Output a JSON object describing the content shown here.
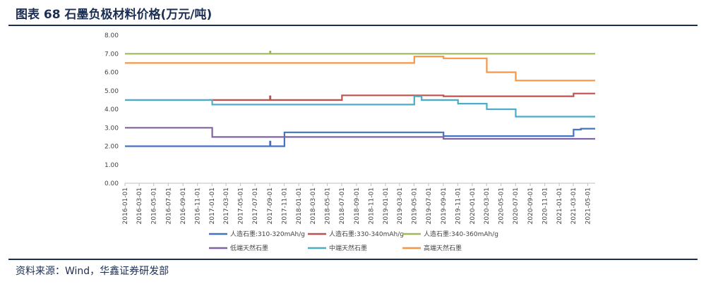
{
  "header": {
    "title": "图表 68 石墨负极材料价格(万元/吨)"
  },
  "footer": {
    "source": "资料来源：Wind，华鑫证券研发部"
  },
  "chart_data": {
    "type": "line",
    "step": true,
    "title": "图表 68 石墨负极材料价格(万元/吨)",
    "xlabel": "",
    "ylabel": "",
    "ylim": [
      0,
      8
    ],
    "yticks": [
      "0.00",
      "1.00",
      "2.00",
      "3.00",
      "4.00",
      "5.00",
      "6.00",
      "7.00",
      "8.00"
    ],
    "xlim": [
      "2016-01-01",
      "2021-06-01"
    ],
    "xticks": [
      "2016-01-01",
      "2016-03-01",
      "2016-05-01",
      "2016-07-01",
      "2016-09-01",
      "2016-11-01",
      "2017-01-01",
      "2017-03-01",
      "2017-05-01",
      "2017-07-01",
      "2017-09-01",
      "2017-11-01",
      "2018-01-01",
      "2018-03-01",
      "2018-05-01",
      "2018-07-01",
      "2018-09-01",
      "2018-11-01",
      "2019-01-01",
      "2019-03-01",
      "2019-05-01",
      "2019-07-01",
      "2019-09-01",
      "2019-11-01",
      "2020-01-01",
      "2020-03-01",
      "2020-05-01",
      "2020-07-01",
      "2020-09-01",
      "2020-11-01",
      "2021-01-01",
      "2021-03-01",
      "2021-05-01"
    ],
    "grid": false,
    "legend_position": "bottom",
    "series": [
      {
        "name": "人造石墨:310-320mAh/g",
        "color": "#4472c4",
        "points": [
          [
            "2016-01-01",
            2.0
          ],
          [
            "2017-09-01",
            2.0
          ],
          [
            "2017-09-02",
            2.25
          ],
          [
            "2017-09-04",
            2.0
          ],
          [
            "2017-11-01",
            2.0
          ],
          [
            "2017-11-02",
            2.75
          ],
          [
            "2019-09-01",
            2.75
          ],
          [
            "2019-09-02",
            2.55
          ],
          [
            "2021-03-01",
            2.55
          ],
          [
            "2021-03-02",
            2.9
          ],
          [
            "2021-04-01",
            2.9
          ],
          [
            "2021-04-02",
            2.95
          ],
          [
            "2021-06-01",
            2.95
          ]
        ]
      },
      {
        "name": "人造石墨:330-340mAh/g",
        "color": "#c0504d",
        "points": [
          [
            "2016-12-20",
            4.5
          ],
          [
            "2017-09-01",
            4.5
          ],
          [
            "2017-09-02",
            4.7
          ],
          [
            "2017-09-04",
            4.5
          ],
          [
            "2018-07-01",
            4.5
          ],
          [
            "2018-07-02",
            4.75
          ],
          [
            "2019-09-01",
            4.75
          ],
          [
            "2019-09-02",
            4.7
          ],
          [
            "2021-03-01",
            4.7
          ],
          [
            "2021-03-02",
            4.85
          ],
          [
            "2021-06-01",
            4.85
          ]
        ]
      },
      {
        "name": "人造石墨:340-360mAh/g",
        "color": "#9bbb59",
        "points": [
          [
            "2016-01-01",
            7.0
          ],
          [
            "2017-09-01",
            7.0
          ],
          [
            "2017-09-02",
            7.12
          ],
          [
            "2017-09-04",
            7.0
          ],
          [
            "2021-06-01",
            7.0
          ]
        ]
      },
      {
        "name": "低端天然石墨",
        "color": "#8064a2",
        "points": [
          [
            "2016-01-01",
            3.0
          ],
          [
            "2017-01-01",
            3.0
          ],
          [
            "2017-01-02",
            2.5
          ],
          [
            "2019-09-01",
            2.5
          ],
          [
            "2019-09-02",
            2.4
          ],
          [
            "2021-06-01",
            2.4
          ]
        ]
      },
      {
        "name": "中端天然石墨",
        "color": "#4bacc6",
        "points": [
          [
            "2016-01-01",
            4.5
          ],
          [
            "2017-01-01",
            4.5
          ],
          [
            "2017-01-02",
            4.25
          ],
          [
            "2019-05-01",
            4.25
          ],
          [
            "2019-05-02",
            4.7
          ],
          [
            "2019-06-01",
            4.7
          ],
          [
            "2019-06-02",
            4.5
          ],
          [
            "2019-11-01",
            4.5
          ],
          [
            "2019-11-02",
            4.3
          ],
          [
            "2020-03-01",
            4.3
          ],
          [
            "2020-03-02",
            4.0
          ],
          [
            "2020-07-01",
            4.0
          ],
          [
            "2020-07-02",
            3.6
          ],
          [
            "2021-06-01",
            3.6
          ]
        ]
      },
      {
        "name": "高端天然石墨",
        "color": "#f79646",
        "points": [
          [
            "2016-01-01",
            6.5
          ],
          [
            "2019-05-01",
            6.5
          ],
          [
            "2019-05-02",
            6.85
          ],
          [
            "2019-09-01",
            6.85
          ],
          [
            "2019-09-02",
            6.75
          ],
          [
            "2020-03-01",
            6.75
          ],
          [
            "2020-03-02",
            6.0
          ],
          [
            "2020-07-01",
            6.0
          ],
          [
            "2020-07-02",
            5.55
          ],
          [
            "2021-06-01",
            5.55
          ]
        ]
      }
    ]
  }
}
